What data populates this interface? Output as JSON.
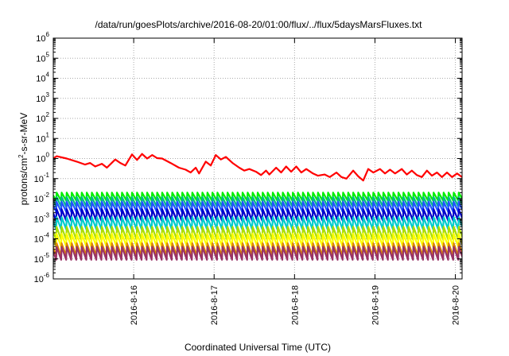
{
  "chart_data": {
    "type": "line",
    "title": "/data/run/goesPlots/archive/2016-08-20/01:00/flux/../flux/5daysMarsFluxes.txt",
    "xlabel": "Coordinated Universal Time (UTC)",
    "ylabel_parts": [
      "protons/cm",
      "2",
      "-s-sr-MeV"
    ],
    "x_ticks": [
      "2016-8-16",
      "2016-8-17",
      "2016-8-18",
      "2016-8-19",
      "2016-8-20"
    ],
    "xlim": [
      "2016-08-15 00:00",
      "2016-08-20 02:00"
    ],
    "y_scale": "log",
    "ylim": [
      1e-06,
      1000000.0
    ],
    "y_tick_exponents": [
      "-6",
      "-5",
      "-4",
      "-3",
      "-2",
      "-1",
      "0",
      "1",
      "2",
      "3",
      "4",
      "5",
      "6"
    ],
    "grid": true,
    "series": [
      {
        "color": "#ff0000",
        "sawtooth": false,
        "points": [
          [
            "2016-08-15 00:00",
            1.0
          ],
          [
            "2016-08-15 01:00",
            1.3
          ],
          [
            "2016-08-15 04:00",
            1.0
          ],
          [
            "2016-08-15 07:00",
            0.7
          ],
          [
            "2016-08-15 09:30",
            0.5
          ],
          [
            "2016-08-15 11:00",
            0.6
          ],
          [
            "2016-08-15 12:30",
            0.4
          ],
          [
            "2016-08-15 14:30",
            0.55
          ],
          [
            "2016-08-15 16:00",
            0.35
          ],
          [
            "2016-08-15 18:30",
            0.9
          ],
          [
            "2016-08-15 20:00",
            0.6
          ],
          [
            "2016-08-15 21:30",
            0.45
          ],
          [
            "2016-08-15 23:30",
            1.6
          ],
          [
            "2016-08-16 01:00",
            0.85
          ],
          [
            "2016-08-16 02:30",
            1.7
          ],
          [
            "2016-08-16 04:00",
            1.0
          ],
          [
            "2016-08-16 05:30",
            1.5
          ],
          [
            "2016-08-16 07:00",
            1.05
          ],
          [
            "2016-08-16 08:30",
            1.0
          ],
          [
            "2016-08-16 11:00",
            0.6
          ],
          [
            "2016-08-16 13:30",
            0.35
          ],
          [
            "2016-08-16 15:30",
            0.28
          ],
          [
            "2016-08-16 17:00",
            0.2
          ],
          [
            "2016-08-16 18:30",
            0.35
          ],
          [
            "2016-08-16 19:30",
            0.18
          ],
          [
            "2016-08-16 21:30",
            0.7
          ],
          [
            "2016-08-16 23:00",
            0.45
          ],
          [
            "2016-08-17 00:30",
            1.5
          ],
          [
            "2016-08-17 02:00",
            0.9
          ],
          [
            "2016-08-17 03:30",
            1.2
          ],
          [
            "2016-08-17 05:30",
            0.6
          ],
          [
            "2016-08-17 07:30",
            0.35
          ],
          [
            "2016-08-17 09:00",
            0.25
          ],
          [
            "2016-08-17 10:30",
            0.3
          ],
          [
            "2016-08-17 12:30",
            0.22
          ],
          [
            "2016-08-17 14:00",
            0.15
          ],
          [
            "2016-08-17 15:30",
            0.25
          ],
          [
            "2016-08-17 16:30",
            0.16
          ],
          [
            "2016-08-17 18:30",
            0.35
          ],
          [
            "2016-08-17 20:00",
            0.2
          ],
          [
            "2016-08-17 21:30",
            0.4
          ],
          [
            "2016-08-17 23:00",
            0.22
          ],
          [
            "2016-08-18 00:30",
            0.4
          ],
          [
            "2016-08-18 02:00",
            0.2
          ],
          [
            "2016-08-18 03:30",
            0.3
          ],
          [
            "2016-08-18 05:30",
            0.18
          ],
          [
            "2016-08-18 07:00",
            0.14
          ],
          [
            "2016-08-18 09:00",
            0.16
          ],
          [
            "2016-08-18 10:30",
            0.12
          ],
          [
            "2016-08-18 12:30",
            0.2
          ],
          [
            "2016-08-18 14:00",
            0.12
          ],
          [
            "2016-08-18 15:30",
            0.1
          ],
          [
            "2016-08-18 17:30",
            0.25
          ],
          [
            "2016-08-18 19:00",
            0.13
          ],
          [
            "2016-08-18 20:30",
            0.08
          ],
          [
            "2016-08-18 22:00",
            0.3
          ],
          [
            "2016-08-18 23:30",
            0.2
          ],
          [
            "2016-08-19 01:30",
            0.3
          ],
          [
            "2016-08-19 03:00",
            0.18
          ],
          [
            "2016-08-19 04:30",
            0.28
          ],
          [
            "2016-08-19 06:00",
            0.18
          ],
          [
            "2016-08-19 08:00",
            0.3
          ],
          [
            "2016-08-19 09:30",
            0.16
          ],
          [
            "2016-08-19 11:00",
            0.25
          ],
          [
            "2016-08-19 12:30",
            0.15
          ],
          [
            "2016-08-19 14:00",
            0.12
          ],
          [
            "2016-08-19 15:30",
            0.25
          ],
          [
            "2016-08-19 17:00",
            0.14
          ],
          [
            "2016-08-19 18:30",
            0.2
          ],
          [
            "2016-08-19 20:00",
            0.12
          ],
          [
            "2016-08-19 21:30",
            0.2
          ],
          [
            "2016-08-19 23:00",
            0.12
          ],
          [
            "2016-08-20 00:30",
            0.18
          ],
          [
            "2016-08-20 02:00",
            0.12
          ]
        ]
      },
      {
        "color": "#00ee00",
        "sawtooth": true,
        "peak": 0.02,
        "trough": 0.008
      },
      {
        "color": "#00bb88",
        "sawtooth": true,
        "peak": 0.012,
        "trough": 0.004
      },
      {
        "color": "#2255ff",
        "sawtooth": true,
        "peak": 0.007,
        "trough": 0.0022
      },
      {
        "color": "#0000cc",
        "sawtooth": true,
        "peak": 0.003,
        "trough": 0.0008
      },
      {
        "color": "#00cccc",
        "sawtooth": true,
        "peak": 0.0012,
        "trough": 0.0003
      },
      {
        "color": "#aadd00",
        "sawtooth": true,
        "peak": 0.0004,
        "trough": 9e-05
      },
      {
        "color": "#ffff00",
        "sawtooth": true,
        "peak": 0.00018,
        "trough": 4e-05
      },
      {
        "color": "#dd8800",
        "sawtooth": true,
        "peak": 6e-05,
        "trough": 1.4e-05
      },
      {
        "color": "#993366",
        "sawtooth": true,
        "peak": 4e-05,
        "trough": 9e-06
      }
    ]
  }
}
